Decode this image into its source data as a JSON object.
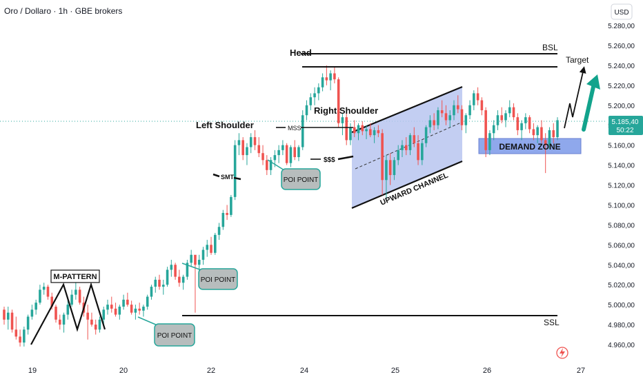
{
  "header": {
    "symbol_title": "Oro / Dollaro · 1h · GBE brokers"
  },
  "price_axis": {
    "currency": "USD",
    "ticks": [
      "5.280,00",
      "5.260,00",
      "5.240,00",
      "5.220,00",
      "5.200,00",
      "5.180,00",
      "5.160,00",
      "5.140,00",
      "5.120,00",
      "5.100,00",
      "5.080,00",
      "5.060,00",
      "5.040,00",
      "5.020,00",
      "5.000,00",
      "4.980,00",
      "4.960,00"
    ],
    "current_price": "5.185,40",
    "countdown": "50:22"
  },
  "time_axis": {
    "ticks": [
      "19",
      "20",
      "22",
      "24",
      "25",
      "26",
      "27"
    ]
  },
  "annotations": {
    "m_pattern": "M-PATTERN",
    "left_shoulder": "Left Shoulder",
    "head": "Head",
    "right_shoulder": "Right Shoulder",
    "mss": "MSS",
    "sss": "$$$",
    "smt": "SMT",
    "poi": "POI POINT",
    "upward_channel": "UPWARD CHANNEL",
    "demand_zone": "DEMAND ZONE",
    "bsl": "BSL",
    "ssl": "SSL",
    "target": "Target"
  },
  "colors": {
    "bull": "#26a69a",
    "bear": "#ef5350",
    "channel_fill": "#b8c6f0",
    "demand_fill": "#8fa8ec",
    "poi_fill": "#b7bdbd",
    "poi_border": "#26a69a",
    "price_tag": "#26a69a",
    "target_arrow": "#12a38c"
  },
  "chart_data": {
    "type": "candlestick",
    "x_axis_ticks": [
      "19",
      "20",
      "22",
      "24",
      "25",
      "26",
      "27"
    ],
    "ylim": [
      4950,
      5290
    ],
    "y_ticks": [
      5280,
      5260,
      5240,
      5220,
      5200,
      5180,
      5160,
      5140,
      5120,
      5100,
      5080,
      5060,
      5040,
      5020,
      5000,
      4980,
      4960
    ],
    "last_price": 5185.4,
    "levels": {
      "bsl": 5251,
      "ssl": 4991,
      "head_high": 5238,
      "demand_zone": [
        5152,
        5168
      ]
    },
    "ohlc": [
      [
        4995,
        4998,
        4980,
        4985
      ],
      [
        4985,
        4998,
        4975,
        4992
      ],
      [
        4992,
        4995,
        4972,
        4975
      ],
      [
        4975,
        4988,
        4965,
        4968
      ],
      [
        4968,
        4975,
        4958,
        4962
      ],
      [
        4962,
        4978,
        4958,
        4975
      ],
      [
        4975,
        4990,
        4970,
        4988
      ],
      [
        4988,
        5000,
        4985,
        4995
      ],
      [
        4995,
        5005,
        4990,
        5002
      ],
      [
        5002,
        5020,
        5000,
        5015
      ],
      [
        5015,
        5022,
        5010,
        5018
      ],
      [
        5018,
        5020,
        5005,
        5008
      ],
      [
        5008,
        5012,
        4995,
        4998
      ],
      [
        4998,
        5000,
        4982,
        4985
      ],
      [
        4985,
        4990,
        4975,
        4980
      ],
      [
        4980,
        4992,
        4972,
        4990
      ],
      [
        4990,
        5005,
        4985,
        5000
      ],
      [
        5000,
        5015,
        4998,
        5010
      ],
      [
        5010,
        5022,
        5005,
        5015
      ],
      [
        5015,
        5018,
        5000,
        5002
      ],
      [
        5002,
        5008,
        4988,
        4992
      ],
      [
        4992,
        5000,
        4965,
        4985
      ],
      [
        4985,
        4992,
        4978,
        4980
      ],
      [
        4980,
        4985,
        4970,
        4975
      ],
      [
        4975,
        4988,
        4972,
        4985
      ],
      [
        4985,
        4998,
        4980,
        4995
      ],
      [
        4995,
        5005,
        4990,
        5000
      ],
      [
        5000,
        5008,
        4992,
        4996
      ],
      [
        4996,
        5002,
        4988,
        4990
      ],
      [
        4990,
        5000,
        4985,
        4998
      ],
      [
        4998,
        5010,
        4995,
        5005
      ],
      [
        5005,
        5012,
        4998,
        5000
      ],
      [
        5000,
        5004,
        4990,
        4992
      ],
      [
        4992,
        5000,
        4985,
        4996
      ],
      [
        4996,
        5002,
        4990,
        4994
      ],
      [
        4994,
        5000,
        4988,
        4998
      ],
      [
        4998,
        5010,
        4995,
        5008
      ],
      [
        5008,
        5020,
        5005,
        5018
      ],
      [
        5018,
        5028,
        5012,
        5025
      ],
      [
        5025,
        5030,
        5015,
        5018
      ],
      [
        5018,
        5025,
        5010,
        5020
      ],
      [
        5020,
        5038,
        5018,
        5035
      ],
      [
        5035,
        5045,
        5028,
        5040
      ],
      [
        5040,
        5042,
        5025,
        5028
      ],
      [
        5028,
        5035,
        5018,
        5022
      ],
      [
        5022,
        5030,
        5015,
        5028
      ],
      [
        5028,
        5045,
        5025,
        5042
      ],
      [
        5042,
        5055,
        5038,
        5050
      ],
      [
        5050,
        5048,
        4992,
        5040
      ],
      [
        5040,
        5050,
        5030,
        5045
      ],
      [
        5045,
        5058,
        5040,
        5055
      ],
      [
        5055,
        5065,
        5048,
        5060
      ],
      [
        5060,
        5068,
        5050,
        5052
      ],
      [
        5052,
        5072,
        5050,
        5070
      ],
      [
        5070,
        5082,
        5065,
        5078
      ],
      [
        5078,
        5095,
        5075,
        5092
      ],
      [
        5092,
        5100,
        5085,
        5090
      ],
      [
        5090,
        5110,
        5088,
        5108
      ],
      [
        5108,
        5165,
        5105,
        5160
      ],
      [
        5160,
        5172,
        5150,
        5165
      ],
      [
        5165,
        5168,
        5145,
        5150
      ],
      [
        5150,
        5162,
        5140,
        5158
      ],
      [
        5158,
        5172,
        5152,
        5168
      ],
      [
        5168,
        5175,
        5155,
        5160
      ],
      [
        5160,
        5168,
        5148,
        5152
      ],
      [
        5152,
        5160,
        5140,
        5145
      ],
      [
        5145,
        5150,
        5130,
        5135
      ],
      [
        5135,
        5148,
        5130,
        5145
      ],
      [
        5145,
        5155,
        5138,
        5150
      ],
      [
        5150,
        5160,
        5142,
        5155
      ],
      [
        5155,
        5165,
        5150,
        5160
      ],
      [
        5160,
        5162,
        5140,
        5142
      ],
      [
        5142,
        5160,
        5138,
        5158
      ],
      [
        5158,
        5165,
        5145,
        5148
      ],
      [
        5148,
        5160,
        5144,
        5158
      ],
      [
        5158,
        5195,
        5155,
        5190
      ],
      [
        5190,
        5205,
        5185,
        5200
      ],
      [
        5200,
        5212,
        5195,
        5208
      ],
      [
        5208,
        5218,
        5200,
        5212
      ],
      [
        5212,
        5222,
        5205,
        5218
      ],
      [
        5218,
        5232,
        5214,
        5228
      ],
      [
        5228,
        5240,
        5220,
        5225
      ],
      [
        5225,
        5235,
        5215,
        5232
      ],
      [
        5232,
        5238,
        5222,
        5226
      ],
      [
        5226,
        5228,
        5178,
        5182
      ],
      [
        5182,
        5192,
        5170,
        5188
      ],
      [
        5188,
        5192,
        5160,
        5165
      ],
      [
        5165,
        5182,
        5160,
        5178
      ],
      [
        5178,
        5185,
        5168,
        5172
      ],
      [
        5172,
        5182,
        5165,
        5180
      ],
      [
        5180,
        5184,
        5170,
        5174
      ],
      [
        5174,
        5180,
        5166,
        5176
      ],
      [
        5176,
        5182,
        5168,
        5170
      ],
      [
        5170,
        5178,
        5162,
        5175
      ],
      [
        5175,
        5180,
        5168,
        5172
      ],
      [
        5172,
        5176,
        5110,
        5125
      ],
      [
        5125,
        5150,
        5105,
        5145
      ],
      [
        5145,
        5152,
        5120,
        5130
      ],
      [
        5130,
        5148,
        5125,
        5145
      ],
      [
        5145,
        5160,
        5140,
        5155
      ],
      [
        5155,
        5165,
        5148,
        5160
      ],
      [
        5160,
        5168,
        5150,
        5155
      ],
      [
        5155,
        5172,
        5150,
        5170
      ],
      [
        5170,
        5178,
        5158,
        5162
      ],
      [
        5162,
        5170,
        5140,
        5145
      ],
      [
        5145,
        5165,
        5140,
        5162
      ],
      [
        5162,
        5180,
        5158,
        5178
      ],
      [
        5178,
        5190,
        5172,
        5185
      ],
      [
        5185,
        5192,
        5175,
        5180
      ],
      [
        5180,
        5198,
        5176,
        5195
      ],
      [
        5195,
        5205,
        5188,
        5192
      ],
      [
        5192,
        5200,
        5180,
        5185
      ],
      [
        5185,
        5195,
        5178,
        5190
      ],
      [
        5190,
        5205,
        5185,
        5200
      ],
      [
        5200,
        5210,
        5192,
        5196
      ],
      [
        5196,
        5200,
        5175,
        5180
      ],
      [
        5180,
        5192,
        5172,
        5190
      ],
      [
        5190,
        5205,
        5186,
        5200
      ],
      [
        5200,
        5215,
        5195,
        5212
      ],
      [
        5212,
        5218,
        5200,
        5205
      ],
      [
        5205,
        5208,
        5190,
        5195
      ],
      [
        5195,
        5198,
        5148,
        5155
      ],
      [
        5155,
        5175,
        5150,
        5172
      ],
      [
        5172,
        5185,
        5165,
        5180
      ],
      [
        5180,
        5195,
        5175,
        5190
      ],
      [
        5190,
        5198,
        5182,
        5185
      ],
      [
        5185,
        5195,
        5178,
        5192
      ],
      [
        5192,
        5205,
        5188,
        5198
      ],
      [
        5198,
        5202,
        5185,
        5188
      ],
      [
        5188,
        5192,
        5170,
        5175
      ],
      [
        5175,
        5185,
        5165,
        5182
      ],
      [
        5182,
        5192,
        5176,
        5188
      ],
      [
        5188,
        5190,
        5172,
        5176
      ],
      [
        5176,
        5182,
        5165,
        5170
      ],
      [
        5170,
        5180,
        5162,
        5178
      ],
      [
        5178,
        5185,
        5162,
        5165
      ],
      [
        5165,
        5172,
        5132,
        5160
      ],
      [
        5160,
        5178,
        5156,
        5175
      ],
      [
        5175,
        5182,
        5162,
        5168
      ],
      [
        5168,
        5188,
        5165,
        5185
      ]
    ]
  }
}
